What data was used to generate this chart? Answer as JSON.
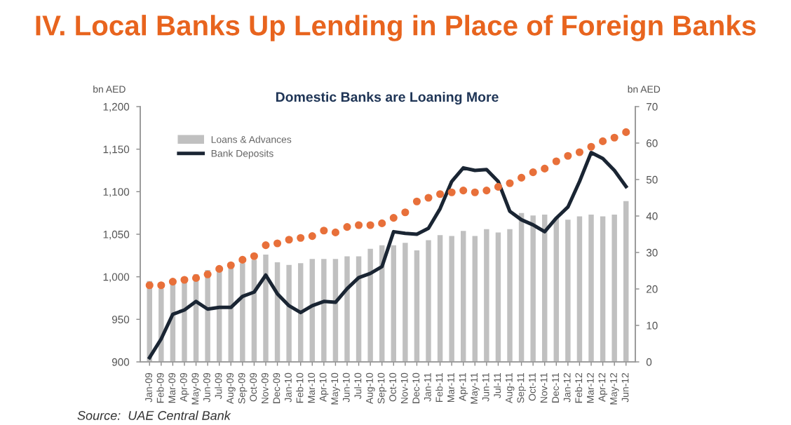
{
  "chart_data": {
    "type": "bar",
    "title": "IV. Local Banks Up Lending in Place of Foreign Banks",
    "subtitle": "Domestic Banks are Loaning More",
    "ylabel": "bn AED",
    "y2label": "bn AED",
    "annotations": [
      "Source:  UAE Central Bank"
    ],
    "categories": [
      "Jan-09",
      "Feb-09",
      "Mar-09",
      "Apr-09",
      "May-09",
      "Jun-09",
      "Jul-09",
      "Aug-09",
      "Sep-09",
      "Oct-09",
      "Nov-09",
      "Dec-09",
      "Jan-10",
      "Feb-10",
      "Mar-10",
      "Apr-10",
      "May-10",
      "Jun-10",
      "Jul-10",
      "Aug-10",
      "Sep-10",
      "Oct-10",
      "Nov-10",
      "Dec-10",
      "Jan-11",
      "Feb-11",
      "Mar-11",
      "Apr-11",
      "May-11",
      "Jun-11",
      "Jul-11",
      "Aug-11",
      "Sep-11",
      "Oct-11",
      "Nov-11",
      "Dec-11",
      "Jan-12",
      "Feb-12",
      "Mar-12",
      "Apr-12",
      "May-12",
      "Jun-12"
    ],
    "series": [
      {
        "name": "Loans & Advances",
        "color": "#c0c0c0",
        "values": [
          995,
          986,
          993,
          995,
          1003,
          1008,
          1011,
          1014,
          1016,
          1020,
          1026,
          1017,
          1014,
          1016,
          1021,
          1021,
          1021,
          1024,
          1024,
          1033,
          1037,
          1037,
          1040,
          1031,
          1043,
          1049,
          1048,
          1054,
          1048,
          1056,
          1052,
          1056,
          1075,
          1072,
          1073,
          1069,
          1067,
          1071,
          1073,
          1071,
          1073,
          1089
        ]
      },
      {
        "name": "Bank Deposits",
        "type": "line",
        "color": "#1a2533",
        "values": [
          905,
          927,
          956,
          961,
          971,
          962,
          964,
          964,
          977,
          982,
          1002,
          980,
          966,
          958,
          966,
          971,
          970,
          986,
          999,
          1004,
          1012,
          1053,
          1051,
          1050,
          1057,
          1080,
          1112,
          1128,
          1125,
          1126,
          1112,
          1077,
          1067,
          1061,
          1053,
          1069,
          1082,
          1112,
          1146,
          1139,
          1125,
          1106
        ]
      },
      {
        "type": "scatter",
        "axis": "y2",
        "color": "#e8703a",
        "values": [
          21,
          21,
          22,
          22.5,
          23,
          24,
          25.5,
          26.5,
          28,
          29,
          32,
          32.5,
          33.5,
          34,
          34.5,
          36,
          35.5,
          37,
          37.5,
          37.5,
          38,
          39.5,
          41,
          44,
          45,
          46,
          46.5,
          47,
          46.5,
          47,
          48,
          49,
          50.5,
          52,
          53,
          55,
          56.5,
          57.5,
          59,
          60.5,
          61.5,
          63
        ]
      }
    ],
    "ylim": [
      900,
      1200
    ],
    "yticks": [
      {
        "value": 900,
        "label": "900"
      },
      {
        "value": 950,
        "label": "950"
      },
      {
        "value": 1000,
        "label": "1,000"
      },
      {
        "value": 1050,
        "label": "1,050"
      },
      {
        "value": 1100,
        "label": "1,100"
      },
      {
        "value": 1150,
        "label": "1,150"
      },
      {
        "value": 1200,
        "label": "1,200"
      }
    ],
    "y2lim": [
      0,
      70
    ],
    "y2ticks": [
      0,
      10,
      20,
      30,
      40,
      50,
      60,
      70
    ],
    "legend": "top left",
    "grid": false
  }
}
